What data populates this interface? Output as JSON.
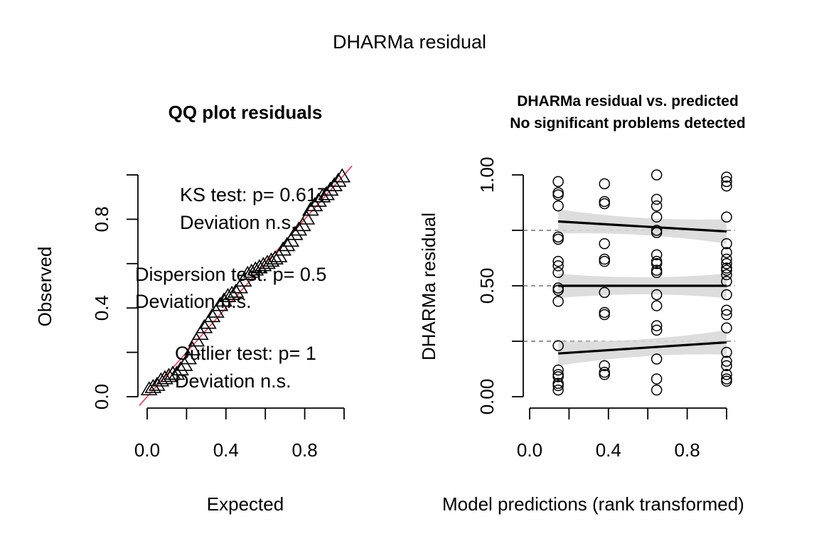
{
  "figure_title": "DHARMa residual",
  "chart_data": [
    {
      "type": "scatter",
      "title": "QQ plot residuals",
      "xlabel": "Expected",
      "ylabel": "Observed",
      "xlim": [
        0,
        1
      ],
      "ylim": [
        0,
        1
      ],
      "x_ticks": [
        0.0,
        0.2,
        0.4,
        0.6,
        0.8,
        1.0
      ],
      "x_tick_labels": [
        "0.0",
        "",
        "0.4",
        "",
        "0.8",
        ""
      ],
      "y_ticks": [
        0.0,
        0.2,
        0.4,
        0.6,
        0.8,
        1.0
      ],
      "y_tick_labels": [
        "0.0",
        "",
        "0.4",
        "",
        "0.8",
        ""
      ],
      "marker": "triangle",
      "reference_line": {
        "from": [
          0,
          0
        ],
        "to": [
          1,
          1
        ],
        "color": "#DF536B"
      },
      "points": {
        "x": [
          0.01,
          0.03,
          0.05,
          0.07,
          0.09,
          0.11,
          0.13,
          0.15,
          0.17,
          0.19,
          0.21,
          0.23,
          0.25,
          0.27,
          0.29,
          0.31,
          0.33,
          0.35,
          0.37,
          0.39,
          0.41,
          0.43,
          0.45,
          0.47,
          0.49,
          0.51,
          0.53,
          0.55,
          0.57,
          0.59,
          0.61,
          0.63,
          0.65,
          0.67,
          0.69,
          0.71,
          0.73,
          0.75,
          0.77,
          0.79,
          0.81,
          0.83,
          0.85,
          0.87,
          0.89,
          0.91,
          0.93,
          0.95,
          0.97,
          0.99
        ],
        "y": [
          0.03,
          0.04,
          0.05,
          0.07,
          0.08,
          0.09,
          0.1,
          0.1,
          0.12,
          0.14,
          0.17,
          0.21,
          0.25,
          0.28,
          0.31,
          0.33,
          0.36,
          0.38,
          0.41,
          0.43,
          0.45,
          0.46,
          0.47,
          0.49,
          0.52,
          0.55,
          0.56,
          0.57,
          0.58,
          0.59,
          0.6,
          0.61,
          0.62,
          0.63,
          0.66,
          0.68,
          0.7,
          0.73,
          0.75,
          0.77,
          0.8,
          0.84,
          0.86,
          0.88,
          0.9,
          0.91,
          0.93,
          0.95,
          0.97,
          0.99
        ]
      },
      "annotations": [
        {
          "line1": "KS test: p= 0.617",
          "line2": "Deviation  n.s."
        },
        {
          "line1": "Dispersion test: p= 0.5",
          "line2": "Deviation  n.s."
        },
        {
          "line1": "Outlier test: p= 1",
          "line2": "Deviation  n.s."
        }
      ]
    },
    {
      "type": "scatter",
      "title": "DHARMa residual vs. predicted",
      "subtitle": "No significant problems detected",
      "xlabel": "Model predictions (rank transformed)",
      "ylabel": "DHARMa residual",
      "xlim": [
        0,
        1
      ],
      "ylim": [
        0,
        1
      ],
      "x_ticks": [
        0.0,
        0.2,
        0.4,
        0.6,
        0.8,
        1.0
      ],
      "x_tick_labels": [
        "0.0",
        "",
        "0.4",
        "",
        "0.8",
        ""
      ],
      "y_ticks": [
        0.0,
        0.25,
        0.5,
        0.75,
        1.0
      ],
      "y_tick_labels": [
        "0.00",
        "",
        "0.50",
        "",
        "1.00"
      ],
      "reference_lines_y": [
        0.25,
        0.5,
        0.75
      ],
      "marker": "open-circle",
      "groups": [
        {
          "x": 0.145,
          "y": [
            0.97,
            0.92,
            0.91,
            0.86,
            0.72,
            0.71,
            0.61,
            0.59,
            0.56,
            0.49,
            0.48,
            0.43,
            0.23,
            0.12,
            0.1,
            0.09,
            0.06,
            0.05,
            0.03
          ]
        },
        {
          "x": 0.38,
          "y": [
            0.96,
            0.88,
            0.87,
            0.69,
            0.62,
            0.61,
            0.47,
            0.38,
            0.37,
            0.14,
            0.11,
            0.1
          ]
        },
        {
          "x": 0.645,
          "y": [
            1.0,
            0.89,
            0.86,
            0.81,
            0.75,
            0.74,
            0.64,
            0.61,
            0.6,
            0.57,
            0.56,
            0.46,
            0.41,
            0.32,
            0.3,
            0.17,
            0.08,
            0.03
          ]
        },
        {
          "x": 1.0,
          "y": [
            0.99,
            0.97,
            0.95,
            0.81,
            0.69,
            0.65,
            0.62,
            0.6,
            0.58,
            0.57,
            0.55,
            0.52,
            0.46,
            0.39,
            0.37,
            0.31,
            0.2,
            0.16,
            0.14,
            0.1,
            0.08,
            0.07
          ]
        }
      ],
      "quantile_lines": [
        {
          "quantile": 0.75,
          "y_start": 0.79,
          "y_end": 0.745
        },
        {
          "quantile": 0.5,
          "y_start": 0.5,
          "y_end": 0.5
        },
        {
          "quantile": 0.25,
          "y_start": 0.195,
          "y_end": 0.245
        }
      ]
    }
  ]
}
